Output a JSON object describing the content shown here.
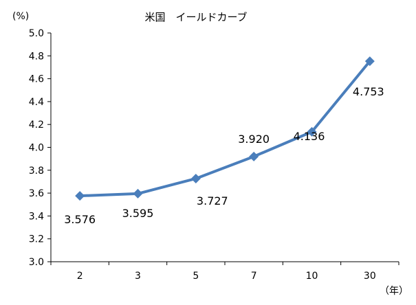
{
  "chart_data": {
    "type": "line",
    "title": "米国　イールドカーブ",
    "y_unit": "(%)",
    "x_unit": "（年）",
    "categories": [
      "2",
      "3",
      "5",
      "7",
      "10",
      "30"
    ],
    "series": [
      {
        "values": [
          3.576,
          3.595,
          3.727,
          3.92,
          4.136,
          4.753
        ],
        "labels": [
          "3.576",
          "3.595",
          "3.727",
          "3.920",
          "4.136",
          "4.753"
        ],
        "color": "#4a7ebb"
      }
    ],
    "yticks": [
      "3.0",
      "3.2",
      "3.4",
      "3.6",
      "3.8",
      "4.0",
      "4.2",
      "4.4",
      "4.6",
      "4.8",
      "5.0"
    ],
    "ylim": [
      3.0,
      5.0
    ],
    "grid": false,
    "legend": "none"
  }
}
